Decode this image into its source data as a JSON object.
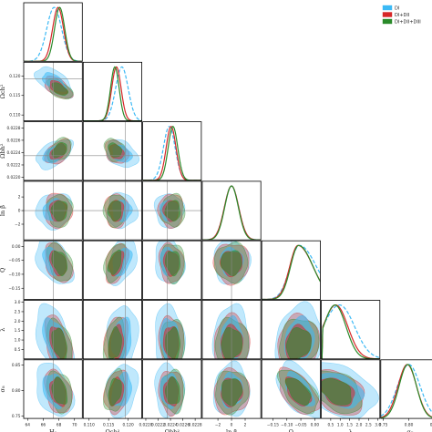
{
  "chart_data": {
    "type": "corner",
    "title": "",
    "parameters": [
      {
        "name": "H0",
        "label": "H₀",
        "range": [
          63.5,
          71
        ],
        "ticks": [
          64,
          66,
          68,
          70
        ],
        "tick_labels": [
          "64",
          "66",
          "68",
          "70"
        ],
        "reference": 67.3
      },
      {
        "name": "omch2",
        "label": "Ωch²",
        "range": [
          0.1085,
          0.1235
        ],
        "ticks": [
          0.11,
          0.115,
          0.12
        ],
        "tick_labels": [
          "0.110",
          "0.115",
          "0.120"
        ],
        "reference": 0.1193
      },
      {
        "name": "ombh2",
        "label": "Ωbh²",
        "range": [
          0.02195,
          0.0229
        ],
        "ticks": [
          0.022,
          0.0222,
          0.0224,
          0.0226,
          0.0228
        ],
        "tick_labels": [
          "0.0220",
          "0.0222",
          "0.0224",
          "0.0226",
          "0.0228"
        ],
        "reference": 0.02235
      },
      {
        "name": "lnbeta",
        "label": "ln β",
        "range": [
          -4.3,
          4.3
        ],
        "ticks": [
          -2,
          0,
          2
        ],
        "tick_labels": [
          "−2",
          "0",
          "2"
        ],
        "reference": 0.0
      },
      {
        "name": "Q",
        "label": "Q",
        "range": [
          -0.19,
          0.02
        ],
        "ticks": [
          -0.15,
          -0.1,
          -0.05,
          0.0
        ],
        "tick_labels": [
          "−0.15",
          "−0.10",
          "−0.05",
          "0.00"
        ],
        "reference": null
      },
      {
        "name": "lambda",
        "label": "λ",
        "range": [
          0.0,
          3.1
        ],
        "ticks": [
          0.5,
          1.0,
          1.5,
          2.0,
          2.5,
          3.0
        ],
        "tick_labels": [
          "0.5",
          "1.0",
          "1.5",
          "2.0",
          "2.5",
          "3.0"
        ],
        "reference": null
      },
      {
        "name": "sigma8",
        "label": "σ₈",
        "range": [
          0.745,
          0.86
        ],
        "ticks": [
          0.75,
          0.8,
          0.85
        ],
        "tick_labels": [
          "0.75",
          "0.80",
          "0.85"
        ],
        "reference": null
      }
    ],
    "series": [
      {
        "name": "DI",
        "color": "#3bb9f5",
        "line_style": "dashed",
        "means": [
          67.4,
          0.1184,
          0.02238,
          0.0,
          -0.055,
          1.05,
          0.8
        ],
        "sigmas": [
          0.95,
          0.0016,
          9.5e-05,
          1.05,
          0.034,
          0.75,
          0.022
        ]
      },
      {
        "name": "DI+DII",
        "color": "#d62728",
        "line_style": "solid",
        "means": [
          67.9,
          0.117,
          0.02241,
          0.0,
          -0.06,
          0.85,
          0.797
        ],
        "sigmas": [
          0.7,
          0.0012,
          8e-05,
          1.05,
          0.03,
          0.6,
          0.018
        ]
      },
      {
        "name": "DI+DII+DIII",
        "color": "#2a8a2a",
        "line_style": "solid",
        "means": [
          68.1,
          0.1166,
          0.02244,
          0.0,
          -0.058,
          0.8,
          0.798
        ],
        "sigmas": [
          0.65,
          0.0011,
          7.8e-05,
          1.0,
          0.029,
          0.55,
          0.017
        ]
      }
    ],
    "correlations": [
      [
        0,
        1,
        -0.55
      ],
      [
        0,
        2,
        0.45
      ],
      [
        0,
        3,
        0.05
      ],
      [
        0,
        4,
        -0.4
      ],
      [
        0,
        5,
        -0.45
      ],
      [
        0,
        6,
        -0.35
      ],
      [
        1,
        2,
        -0.3
      ],
      [
        1,
        3,
        0.05
      ],
      [
        1,
        4,
        0.45
      ],
      [
        1,
        5,
        0.2
      ],
      [
        1,
        6,
        0.25
      ],
      [
        2,
        3,
        0.0
      ],
      [
        2,
        4,
        -0.15
      ],
      [
        2,
        5,
        -0.1
      ],
      [
        2,
        6,
        -0.1
      ],
      [
        3,
        4,
        -0.05
      ],
      [
        3,
        5,
        0.0
      ],
      [
        3,
        6,
        0.0
      ],
      [
        4,
        5,
        0.1
      ],
      [
        4,
        6,
        -0.55
      ],
      [
        5,
        6,
        -0.35
      ]
    ],
    "legend": {
      "placement": "top-right",
      "entries": [
        "DI",
        "DI+DII",
        "DI+DII+DIII"
      ]
    },
    "grid": false
  }
}
